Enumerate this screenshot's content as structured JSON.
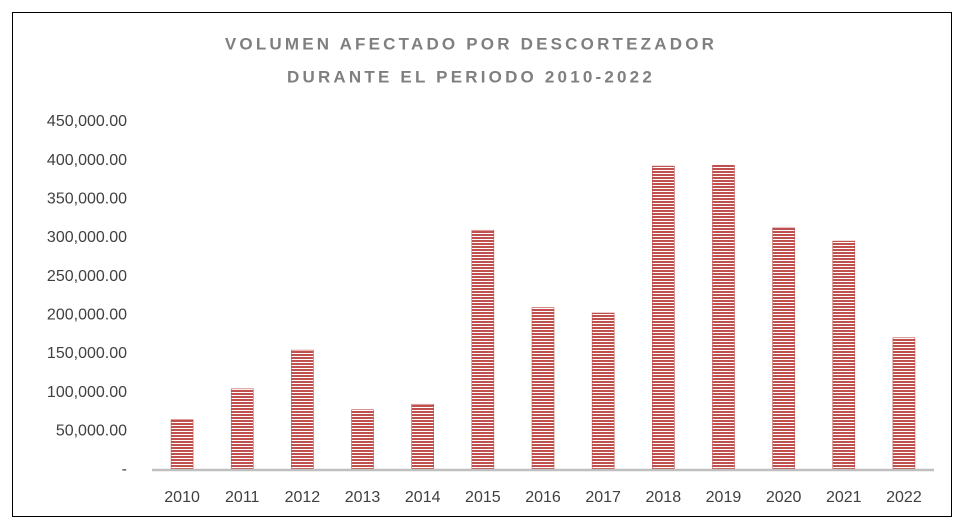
{
  "chart_data": {
    "type": "bar",
    "title": [
      "VOLUMEN AFECTADO POR DESCORTEZADOR",
      "DURANTE EL PERIODO 2010-2022"
    ],
    "categories": [
      "2010",
      "2011",
      "2012",
      "2013",
      "2014",
      "2015",
      "2016",
      "2017",
      "2018",
      "2019",
      "2020",
      "2021",
      "2022"
    ],
    "values": [
      65000,
      105000,
      155000,
      78000,
      85000,
      310000,
      210000,
      203000,
      393000,
      394000,
      313000,
      296000,
      171000
    ],
    "color": "#c0504d",
    "ylim": [
      0,
      450000
    ],
    "yticks": [
      {
        "value": 0,
        "label": "-"
      },
      {
        "value": 50000,
        "label": "50,000.00"
      },
      {
        "value": 100000,
        "label": "100,000.00"
      },
      {
        "value": 150000,
        "label": "150,000.00"
      },
      {
        "value": 200000,
        "label": "200,000.00"
      },
      {
        "value": 250000,
        "label": "250,000.00"
      },
      {
        "value": 300000,
        "label": "300,000.00"
      },
      {
        "value": 350000,
        "label": "350,000.00"
      },
      {
        "value": 400000,
        "label": "400,000.00"
      },
      {
        "value": 450000,
        "label": "450,000.00"
      }
    ],
    "grid": false
  }
}
